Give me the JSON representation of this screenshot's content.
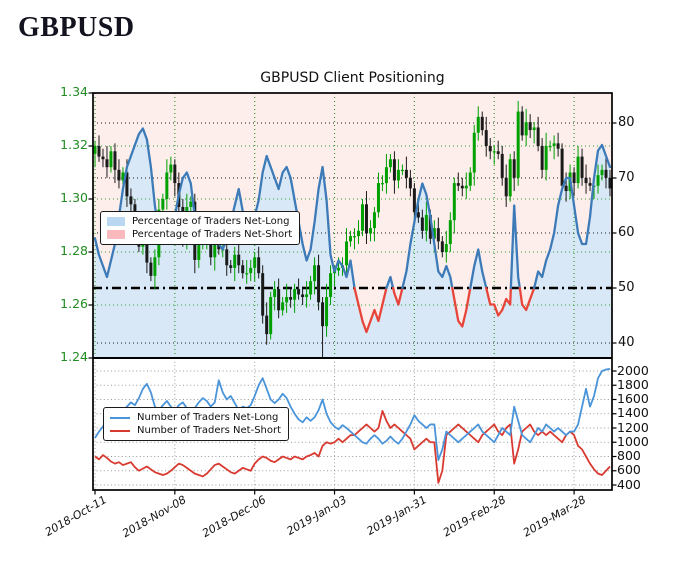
{
  "page": {
    "title": "GBPUSD"
  },
  "chart": {
    "title": "GBPUSD Client Positioning",
    "legend_top": {
      "long": "Percentage of Traders Net-Long",
      "short": "Percentage of Traders Net-Short"
    },
    "legend_bottom": {
      "long": "Number of Traders Net-Long",
      "short": "Number of Traders Net-Short"
    },
    "colors": {
      "price_label_green": "#228b22",
      "candle_up": "#00a000",
      "candle_down": "#1a1a1a",
      "pct_line_long": "#3d7ab8",
      "pct_line_short": "#e8453a",
      "fill_long": "#d9e8f6",
      "fill_short": "#fdeeec",
      "count_long": "#4a94d9",
      "count_short": "#d93a30",
      "grid_green": "#2f9e2f",
      "grid_black": "#1a1a1a",
      "grid_gray": "#9a9a9a",
      "legend_patch_long": "#b9d7f0",
      "legend_patch_short": "#f9b9bd",
      "reference_line": "#000000"
    }
  },
  "chart_data": {
    "type": "mixed",
    "x_tick_labels": [
      "2018-Oct-11",
      "2018-Nov-08",
      "2018-Dec-06",
      "2019-Jan-03",
      "2019-Jan-31",
      "2019-Feb-28",
      "2019-Mar-28"
    ],
    "x_tick_indices": [
      0,
      20,
      40,
      60,
      80,
      100,
      120
    ],
    "panels": [
      {
        "id": "price-and-sentiment",
        "type": "candlestick+line",
        "price_axis": {
          "side": "left",
          "range": [
            1.24,
            1.34
          ],
          "ticks": [
            1.24,
            1.26,
            1.28,
            1.3,
            1.32,
            1.34
          ],
          "gridlines": [
            1.26,
            1.28,
            1.3,
            1.32
          ]
        },
        "pct_axis": {
          "side": "right",
          "ticks": [
            40,
            50,
            60,
            70,
            80
          ],
          "gridlines": [
            40,
            60,
            70,
            80
          ]
        },
        "reference_pct": 50,
        "price_open_first": 1.317,
        "wick_ext_pattern": [
          0.002,
          0.004,
          0.003,
          0.005,
          0.002,
          0.003,
          0.004,
          0.002,
          0.005,
          0.003
        ],
        "flash_crash": {
          "index": 57,
          "low": 1.24
        },
        "price_closes": [
          1.32,
          1.316,
          1.315,
          1.312,
          1.318,
          1.311,
          1.307,
          1.31,
          1.301,
          1.298,
          1.288,
          1.282,
          1.283,
          1.276,
          1.271,
          1.278,
          1.296,
          1.3,
          1.31,
          1.313,
          1.306,
          1.297,
          1.285,
          1.297,
          1.299,
          1.277,
          1.283,
          1.285,
          1.285,
          1.278,
          1.288,
          1.281,
          1.281,
          1.275,
          1.274,
          1.279,
          1.275,
          1.272,
          1.272,
          1.274,
          1.278,
          1.272,
          1.256,
          1.249,
          1.263,
          1.266,
          1.258,
          1.261,
          1.263,
          1.262,
          1.266,
          1.264,
          1.263,
          1.264,
          1.269,
          1.275,
          1.261,
          1.252,
          1.263,
          1.272,
          1.273,
          1.274,
          1.275,
          1.284,
          1.286,
          1.286,
          1.288,
          1.298,
          1.287,
          1.289,
          1.295,
          1.306,
          1.306,
          1.312,
          1.315,
          1.307,
          1.311,
          1.311,
          1.308,
          1.304,
          1.295,
          1.293,
          1.288,
          1.294,
          1.285,
          1.289,
          1.284,
          1.28,
          1.283,
          1.292,
          1.306,
          1.305,
          1.304,
          1.305,
          1.31,
          1.325,
          1.331,
          1.326,
          1.32,
          1.318,
          1.318,
          1.317,
          1.308,
          1.301,
          1.315,
          1.308,
          1.333,
          1.324,
          1.329,
          1.326,
          1.327,
          1.32,
          1.311,
          1.32,
          1.32,
          1.321,
          1.319,
          1.305,
          1.303,
          1.31,
          1.306,
          1.316,
          1.308,
          1.306,
          1.305,
          1.305,
          1.309,
          1.311,
          1.308,
          1.304
        ],
        "pct_net_long": [
          59,
          56,
          54,
          52,
          55,
          58,
          63,
          68,
          72,
          74,
          76,
          78,
          79,
          77,
          72,
          65,
          60,
          59,
          62,
          60,
          63,
          67,
          70,
          71,
          69,
          63,
          60,
          58,
          60,
          63,
          60,
          58,
          57,
          59,
          62,
          65,
          68,
          64,
          61,
          60,
          63,
          66,
          71,
          74,
          72,
          70,
          68,
          71,
          72,
          70,
          66,
          62,
          58,
          55,
          57,
          62,
          68,
          72,
          66,
          56,
          53,
          55,
          54,
          52,
          55,
          50,
          47,
          44,
          42,
          44,
          46,
          44,
          47,
          50,
          52,
          49,
          47,
          50,
          53,
          58,
          62,
          66,
          69,
          67,
          63,
          58,
          53,
          52,
          54,
          52,
          48,
          44,
          43,
          46,
          50,
          54,
          57,
          53,
          50,
          47,
          47,
          45,
          46,
          48,
          47,
          65,
          52,
          47,
          46,
          48,
          50,
          53,
          52,
          55,
          57,
          60,
          65,
          68,
          70,
          70,
          65,
          60,
          58,
          58,
          63,
          70,
          75,
          76,
          74,
          72
        ]
      },
      {
        "id": "trader-counts",
        "type": "line",
        "count_axis": {
          "side": "right",
          "ticks": [
            400,
            600,
            800,
            1000,
            1200,
            1400,
            1600,
            1800,
            2000
          ]
        },
        "net_long": [
          1060,
          1150,
          1220,
          1300,
          1380,
          1420,
          1380,
          1450,
          1500,
          1560,
          1520,
          1620,
          1750,
          1820,
          1700,
          1500,
          1450,
          1520,
          1580,
          1500,
          1440,
          1520,
          1560,
          1480,
          1400,
          1480,
          1560,
          1620,
          1580,
          1500,
          1560,
          1870,
          1700,
          1600,
          1650,
          1550,
          1450,
          1500,
          1480,
          1520,
          1650,
          1800,
          1900,
          1750,
          1600,
          1550,
          1600,
          1680,
          1620,
          1500,
          1400,
          1320,
          1280,
          1350,
          1300,
          1350,
          1450,
          1600,
          1400,
          1280,
          1220,
          1180,
          1240,
          1200,
          1150,
          1100,
          1050,
          1000,
          980,
          1050,
          1100,
          1050,
          980,
          1020,
          1080,
          1020,
          980,
          1050,
          1150,
          1250,
          1380,
          1300,
          1250,
          1200,
          1250,
          1250,
          750,
          900,
          1150,
          1100,
          1050,
          1000,
          1050,
          1100,
          1150,
          1200,
          1250,
          1150,
          1100,
          1050,
          1000,
          1100,
          1200,
          1150,
          1100,
          1500,
          1300,
          1100,
          1050,
          1000,
          1100,
          1200,
          1150,
          1250,
          1200,
          1150,
          1200,
          1150,
          1100,
          1150,
          1150,
          1250,
          1500,
          1750,
          1500,
          1650,
          1900,
          2000,
          2020,
          2030
        ],
        "net_short": [
          800,
          760,
          820,
          780,
          730,
          700,
          720,
          680,
          700,
          720,
          650,
          600,
          630,
          660,
          620,
          580,
          560,
          540,
          560,
          600,
          650,
          700,
          680,
          640,
          600,
          560,
          540,
          520,
          560,
          620,
          680,
          700,
          660,
          620,
          580,
          560,
          600,
          640,
          620,
          600,
          700,
          760,
          800,
          780,
          740,
          720,
          760,
          800,
          780,
          760,
          800,
          780,
          760,
          800,
          820,
          850,
          800,
          950,
          1000,
          980,
          1000,
          1050,
          1000,
          1050,
          1100,
          1100,
          1150,
          1200,
          1250,
          1200,
          1150,
          1200,
          1440,
          1300,
          1200,
          1250,
          1200,
          1150,
          1100,
          1050,
          900,
          950,
          1000,
          1050,
          1000,
          1000,
          430,
          600,
          1100,
          1150,
          1200,
          1250,
          1200,
          1150,
          1100,
          1050,
          1000,
          1100,
          1150,
          1200,
          1250,
          1150,
          1100,
          1200,
          1250,
          700,
          900,
          1150,
          1200,
          1250,
          1150,
          1100,
          1150,
          1100,
          1150,
          1100,
          1050,
          1000,
          1100,
          1150,
          1100,
          950,
          900,
          800,
          700,
          620,
          560,
          540,
          600,
          660
        ]
      }
    ]
  }
}
